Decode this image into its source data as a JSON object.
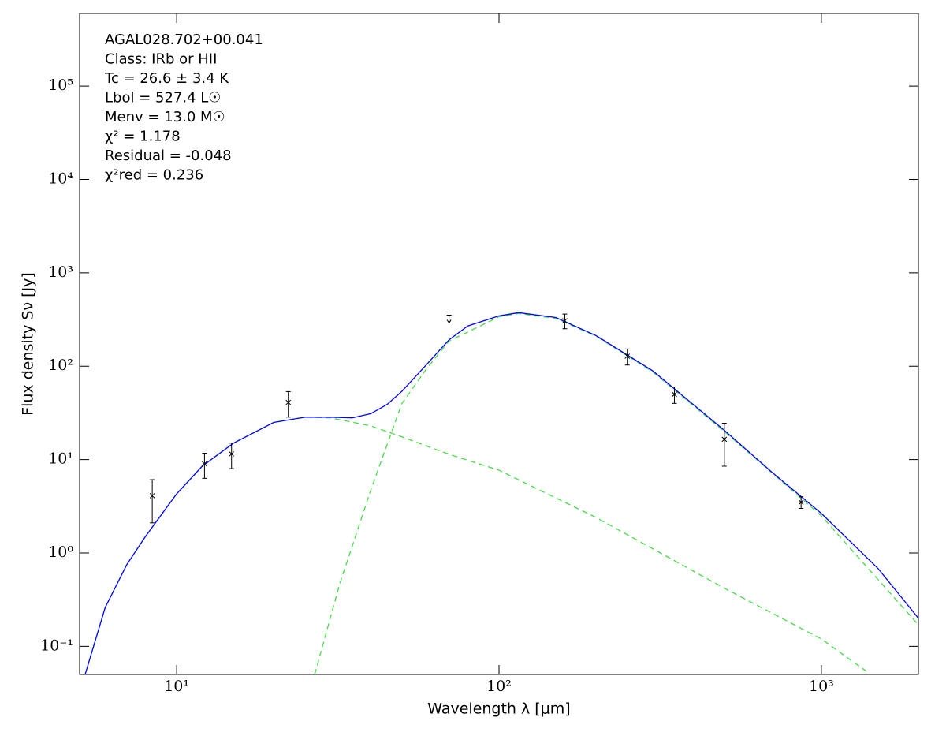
{
  "chart_data": {
    "type": "line",
    "xlabel": "Wavelength λ [μm]",
    "ylabel": "Flux density Sν [Jy]",
    "xscale": "log",
    "yscale": "log",
    "xlim": [
      5,
      2000
    ],
    "ylim": [
      0.05,
      600000
    ],
    "xticks": [
      {
        "value": 10,
        "label": "10¹"
      },
      {
        "value": 100,
        "label": "10²"
      },
      {
        "value": 1000,
        "label": "10³"
      }
    ],
    "yticks": [
      {
        "value": 0.1,
        "label": "10⁻¹"
      },
      {
        "value": 1,
        "label": "10⁰"
      },
      {
        "value": 10,
        "label": "10¹"
      },
      {
        "value": 100,
        "label": "10²"
      },
      {
        "value": 1000,
        "label": "10³"
      },
      {
        "value": 10000,
        "label": "10⁴"
      },
      {
        "value": 100000,
        "label": "10⁵"
      }
    ],
    "annotations": [
      "AGAL028.702+00.041",
      "Class: IRb or HII",
      "Tc = 26.6 ± 3.4 K",
      "Lbol = 527.4 L☉",
      "Menv = 13.0 M☉",
      "χ² = 1.178",
      "Residual = -0.048",
      "χ²red = 0.236"
    ],
    "series": [
      {
        "type": "line",
        "style": "dashed",
        "color": "#44dd44",
        "x": [
          5.2,
          6,
          7,
          8,
          10,
          12,
          15,
          20,
          25,
          30,
          40,
          50,
          70,
          100,
          200,
          500,
          1000,
          1380
        ],
        "values": [
          0.05,
          0.26,
          0.75,
          1.5,
          4.3,
          8.5,
          15,
          25,
          28.5,
          28,
          23,
          17.5,
          11.4,
          7.7,
          2.4,
          0.42,
          0.12,
          0.054
        ]
      },
      {
        "type": "line",
        "style": "dashed",
        "color": "#44dd44",
        "x": [
          26.8,
          32,
          40,
          50,
          60,
          70,
          100,
          115,
          150,
          200,
          300,
          500,
          1000,
          2000
        ],
        "values": [
          0.05,
          0.46,
          4.7,
          40,
          97,
          186,
          338,
          368,
          325,
          210,
          87,
          20,
          2.5,
          0.17
        ]
      },
      {
        "type": "line",
        "style": "solid",
        "color": "#0000ff",
        "x": [
          5.2,
          6,
          7,
          8,
          10,
          12,
          15,
          20,
          25,
          30,
          35,
          40,
          45,
          50,
          60,
          70,
          80,
          100,
          115,
          150,
          200,
          300,
          500,
          700,
          1000,
          1500,
          2000
        ],
        "values": [
          0.05,
          0.26,
          0.75,
          1.5,
          4.3,
          8.5,
          15,
          25,
          28.5,
          28.5,
          28,
          31,
          39,
          54,
          107,
          192,
          270,
          346,
          375,
          332,
          213,
          89,
          20.6,
          7.4,
          2.65,
          0.68,
          0.2
        ]
      },
      {
        "type": "errorbar",
        "color": "#000000",
        "x": [
          8.4,
          12.2,
          14.8,
          22.2,
          160,
          250,
          350,
          500,
          865
        ],
        "values": [
          4.1,
          9,
          11.5,
          41,
          307,
          128,
          50,
          16.5,
          3.5
        ],
        "errors": [
          2,
          2.7,
          3.5,
          12.5,
          55,
          25,
          10,
          8,
          0.5
        ]
      },
      {
        "type": "upper_limit",
        "color": "#000000",
        "x": [
          70
        ],
        "values": [
          352
        ]
      }
    ]
  }
}
